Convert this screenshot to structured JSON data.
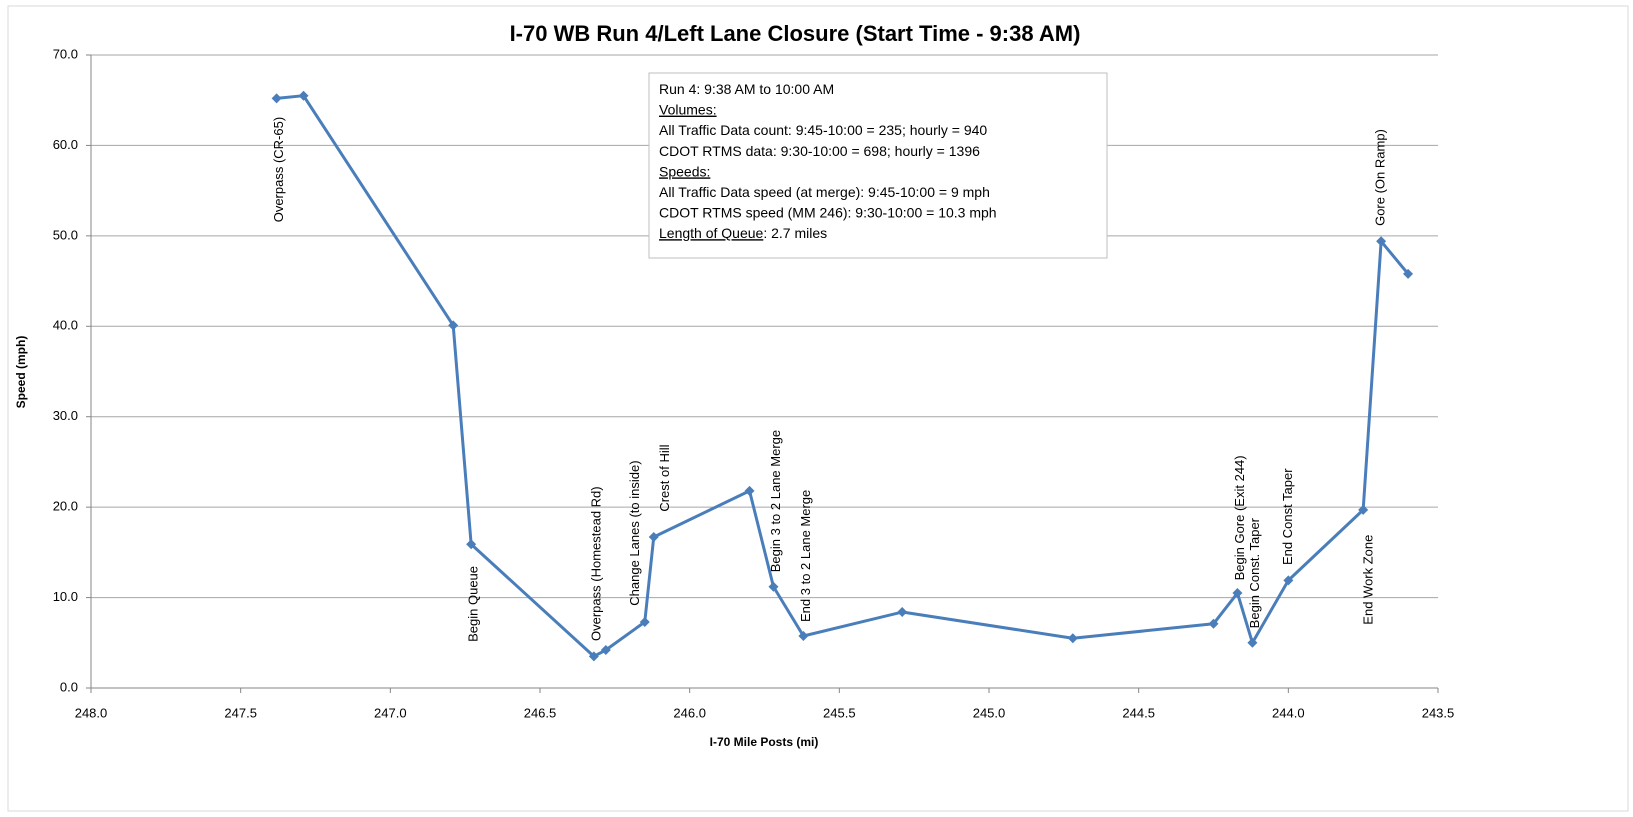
{
  "chart_data": {
    "type": "line",
    "title": "I-70 WB Run 4/Left Lane Closure (Start Time - 9:38 AM)",
    "x_label": "I-70 Mile Posts (mi)",
    "y_label": "Speed (mph)",
    "xlim": [
      248.0,
      243.5
    ],
    "ylim": [
      0,
      70
    ],
    "xticks": [
      {
        "value": 248.0,
        "label": "248.0"
      },
      {
        "value": 247.5,
        "label": "247.5"
      },
      {
        "value": 247.0,
        "label": "247.0"
      },
      {
        "value": 246.5,
        "label": "246.5"
      },
      {
        "value": 246.0,
        "label": "246.0"
      },
      {
        "value": 245.5,
        "label": "245.5"
      },
      {
        "value": 245.0,
        "label": "245.0"
      },
      {
        "value": 244.5,
        "label": "244.5"
      },
      {
        "value": 244.0,
        "label": "244.0"
      },
      {
        "value": 243.5,
        "label": "243.5"
      }
    ],
    "yticks": [
      {
        "value": 0,
        "label": "0.0"
      },
      {
        "value": 10,
        "label": "10.0"
      },
      {
        "value": 20,
        "label": "20.0"
      },
      {
        "value": 30,
        "label": "30.0"
      },
      {
        "value": 40,
        "label": "40.0"
      },
      {
        "value": 50,
        "label": "50.0"
      },
      {
        "value": 60,
        "label": "60.0"
      },
      {
        "value": 70,
        "label": "70.0"
      }
    ],
    "grid": true,
    "x": [
      247.38,
      247.29,
      246.79,
      246.73,
      246.32,
      246.28,
      246.15,
      246.12,
      245.8,
      245.72,
      245.62,
      245.29,
      244.72,
      244.25,
      244.17,
      244.12,
      244.0,
      243.75,
      243.69,
      243.6
    ],
    "series": [
      {
        "name": "Speed",
        "color": "#4a7ebb",
        "values": [
          65.2,
          65.5,
          40.1,
          15.9,
          3.5,
          4.2,
          7.3,
          16.7,
          21.8,
          11.2,
          5.75,
          8.4,
          5.5,
          7.1,
          10.5,
          5.0,
          11.9,
          19.7,
          49.4,
          45.8
        ]
      }
    ],
    "annotations": [
      {
        "text": "Overpass (CR-65)",
        "x": 247.37,
        "y": 51.5
      },
      {
        "text": "Begin Queue",
        "x": 246.72,
        "y": 5.1
      },
      {
        "text": "Overpass (Homestead Rd)",
        "x": 246.31,
        "y": 5.2
      },
      {
        "text": "Change Lanes (to inside)",
        "x": 246.18,
        "y": 9.1
      },
      {
        "text": "Crest of Hill",
        "x": 246.08,
        "y": 19.5
      },
      {
        "text": "Begin 3 to 2 Lane Merge",
        "x": 245.71,
        "y": 12.8
      },
      {
        "text": "End 3 to 2 Lane Merge",
        "x": 245.61,
        "y": 7.3
      },
      {
        "text": "Begin Gore (Exit 244)",
        "x": 244.16,
        "y": 11.9
      },
      {
        "text": "Begin Const. Taper",
        "x": 244.11,
        "y": 6.6
      },
      {
        "text": "End Const Taper",
        "x": 244.0,
        "y": 13.6
      },
      {
        "text": "End Work Zone",
        "x": 243.73,
        "y": 7.0
      },
      {
        "text": "Gore (On Ramp)",
        "x": 243.69,
        "y": 51.1
      }
    ],
    "textbox": [
      [
        {
          "text": "Run 4: 9:38 AM to 10:00 AM",
          "underline": false
        }
      ],
      [
        {
          "text": "Volumes:",
          "underline": true
        }
      ],
      [
        {
          "text": "All Traffic Data count: 9:45-10:00 = 235; hourly = 940",
          "underline": false
        }
      ],
      [
        {
          "text": "CDOT RTMS data: 9:30-10:00 = 698; hourly = 1396",
          "underline": false
        }
      ],
      [
        {
          "text": "Speeds:",
          "underline": true
        }
      ],
      [
        {
          "text": "All Traffic Data speed (at merge): 9:45-10:00 = 9 mph",
          "underline": false
        }
      ],
      [
        {
          "text": "CDOT RTMS speed (MM 246): 9:30-10:00 = 10.3 mph",
          "underline": false
        }
      ],
      [
        {
          "text": "Length of Queue",
          "underline": true
        },
        {
          "text": ": 2.7 miles",
          "underline": false
        }
      ]
    ]
  }
}
